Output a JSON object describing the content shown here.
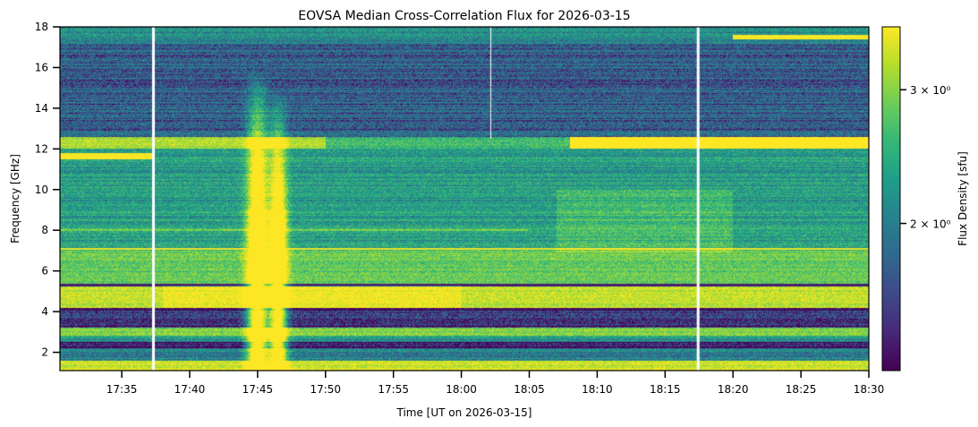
{
  "chart_data": {
    "type": "heatmap",
    "title": "EOVSA Median Cross-Correlation Flux for 2026-03-15",
    "xlabel": "Time [UT on 2026-03-15]",
    "ylabel": "Frequency [GHz]",
    "colorbar_label": "Flux Density [sfu]",
    "colormap": "viridis",
    "color_scale": "log",
    "color_range": [
      1.28,
      3.63
    ],
    "colorbar_ticks": [
      {
        "value": 3,
        "label": "3 × 10⁰"
      },
      {
        "value": 2,
        "label": "2 × 10⁰"
      }
    ],
    "x_range_minutes_after_1730": [
      0.45,
      60
    ],
    "y_range": [
      1.1,
      18
    ],
    "x_ticks": [
      {
        "min": 5,
        "label": "17:35"
      },
      {
        "min": 10,
        "label": "17:40"
      },
      {
        "min": 15,
        "label": "17:45"
      },
      {
        "min": 20,
        "label": "17:50"
      },
      {
        "min": 25,
        "label": "17:55"
      },
      {
        "min": 30,
        "label": "18:00"
      },
      {
        "min": 35,
        "label": "18:05"
      },
      {
        "min": 40,
        "label": "18:10"
      },
      {
        "min": 45,
        "label": "18:15"
      },
      {
        "min": 50,
        "label": "18:20"
      },
      {
        "min": 55,
        "label": "18:25"
      },
      {
        "min": 60,
        "label": "18:30"
      }
    ],
    "y_ticks": [
      2,
      4,
      6,
      8,
      10,
      12,
      14,
      16,
      18
    ],
    "data_gaps_minutes": [
      {
        "t": 7.3,
        "f_min": 1.1,
        "f_max": 18
      },
      {
        "t": 47.4,
        "f_min": 1.1,
        "f_max": 18
      },
      {
        "t": 32.2,
        "f_min": 12.5,
        "f_max": 18
      }
    ],
    "frequency_bands_sfu": [
      {
        "f": [
          1.1,
          1.6
        ],
        "level": 3.4
      },
      {
        "f": [
          1.6,
          2.2
        ],
        "level": 2.1
      },
      {
        "f": [
          2.2,
          2.5
        ],
        "level": 1.35
      },
      {
        "f": [
          2.5,
          2.8
        ],
        "level": 2.2
      },
      {
        "f": [
          2.8,
          3.2
        ],
        "level": 3.0
      },
      {
        "f": [
          3.2,
          4.0
        ],
        "level": 1.45
      },
      {
        "f": [
          4.0,
          4.2
        ],
        "level": 1.4
      },
      {
        "f": [
          4.2,
          5.3
        ],
        "level": 3.3
      },
      {
        "f": [
          5.3,
          7.0
        ],
        "level": 2.85
      },
      {
        "f": [
          7.0,
          12.0
        ],
        "level": 2.3
      },
      {
        "f": [
          12.0,
          12.6
        ],
        "level": 3.2
      },
      {
        "f": [
          12.6,
          17.2
        ],
        "level": 1.75
      },
      {
        "f": [
          17.2,
          18.0
        ],
        "level": 2.1
      }
    ],
    "bursts": [
      {
        "t_peak_min": 15.0,
        "width_min": 0.7,
        "f_top": 16,
        "peak_sfu": 3.6
      },
      {
        "t_peak_min": 16.5,
        "width_min": 0.6,
        "f_top": 15,
        "peak_sfu": 3.5
      }
    ]
  }
}
